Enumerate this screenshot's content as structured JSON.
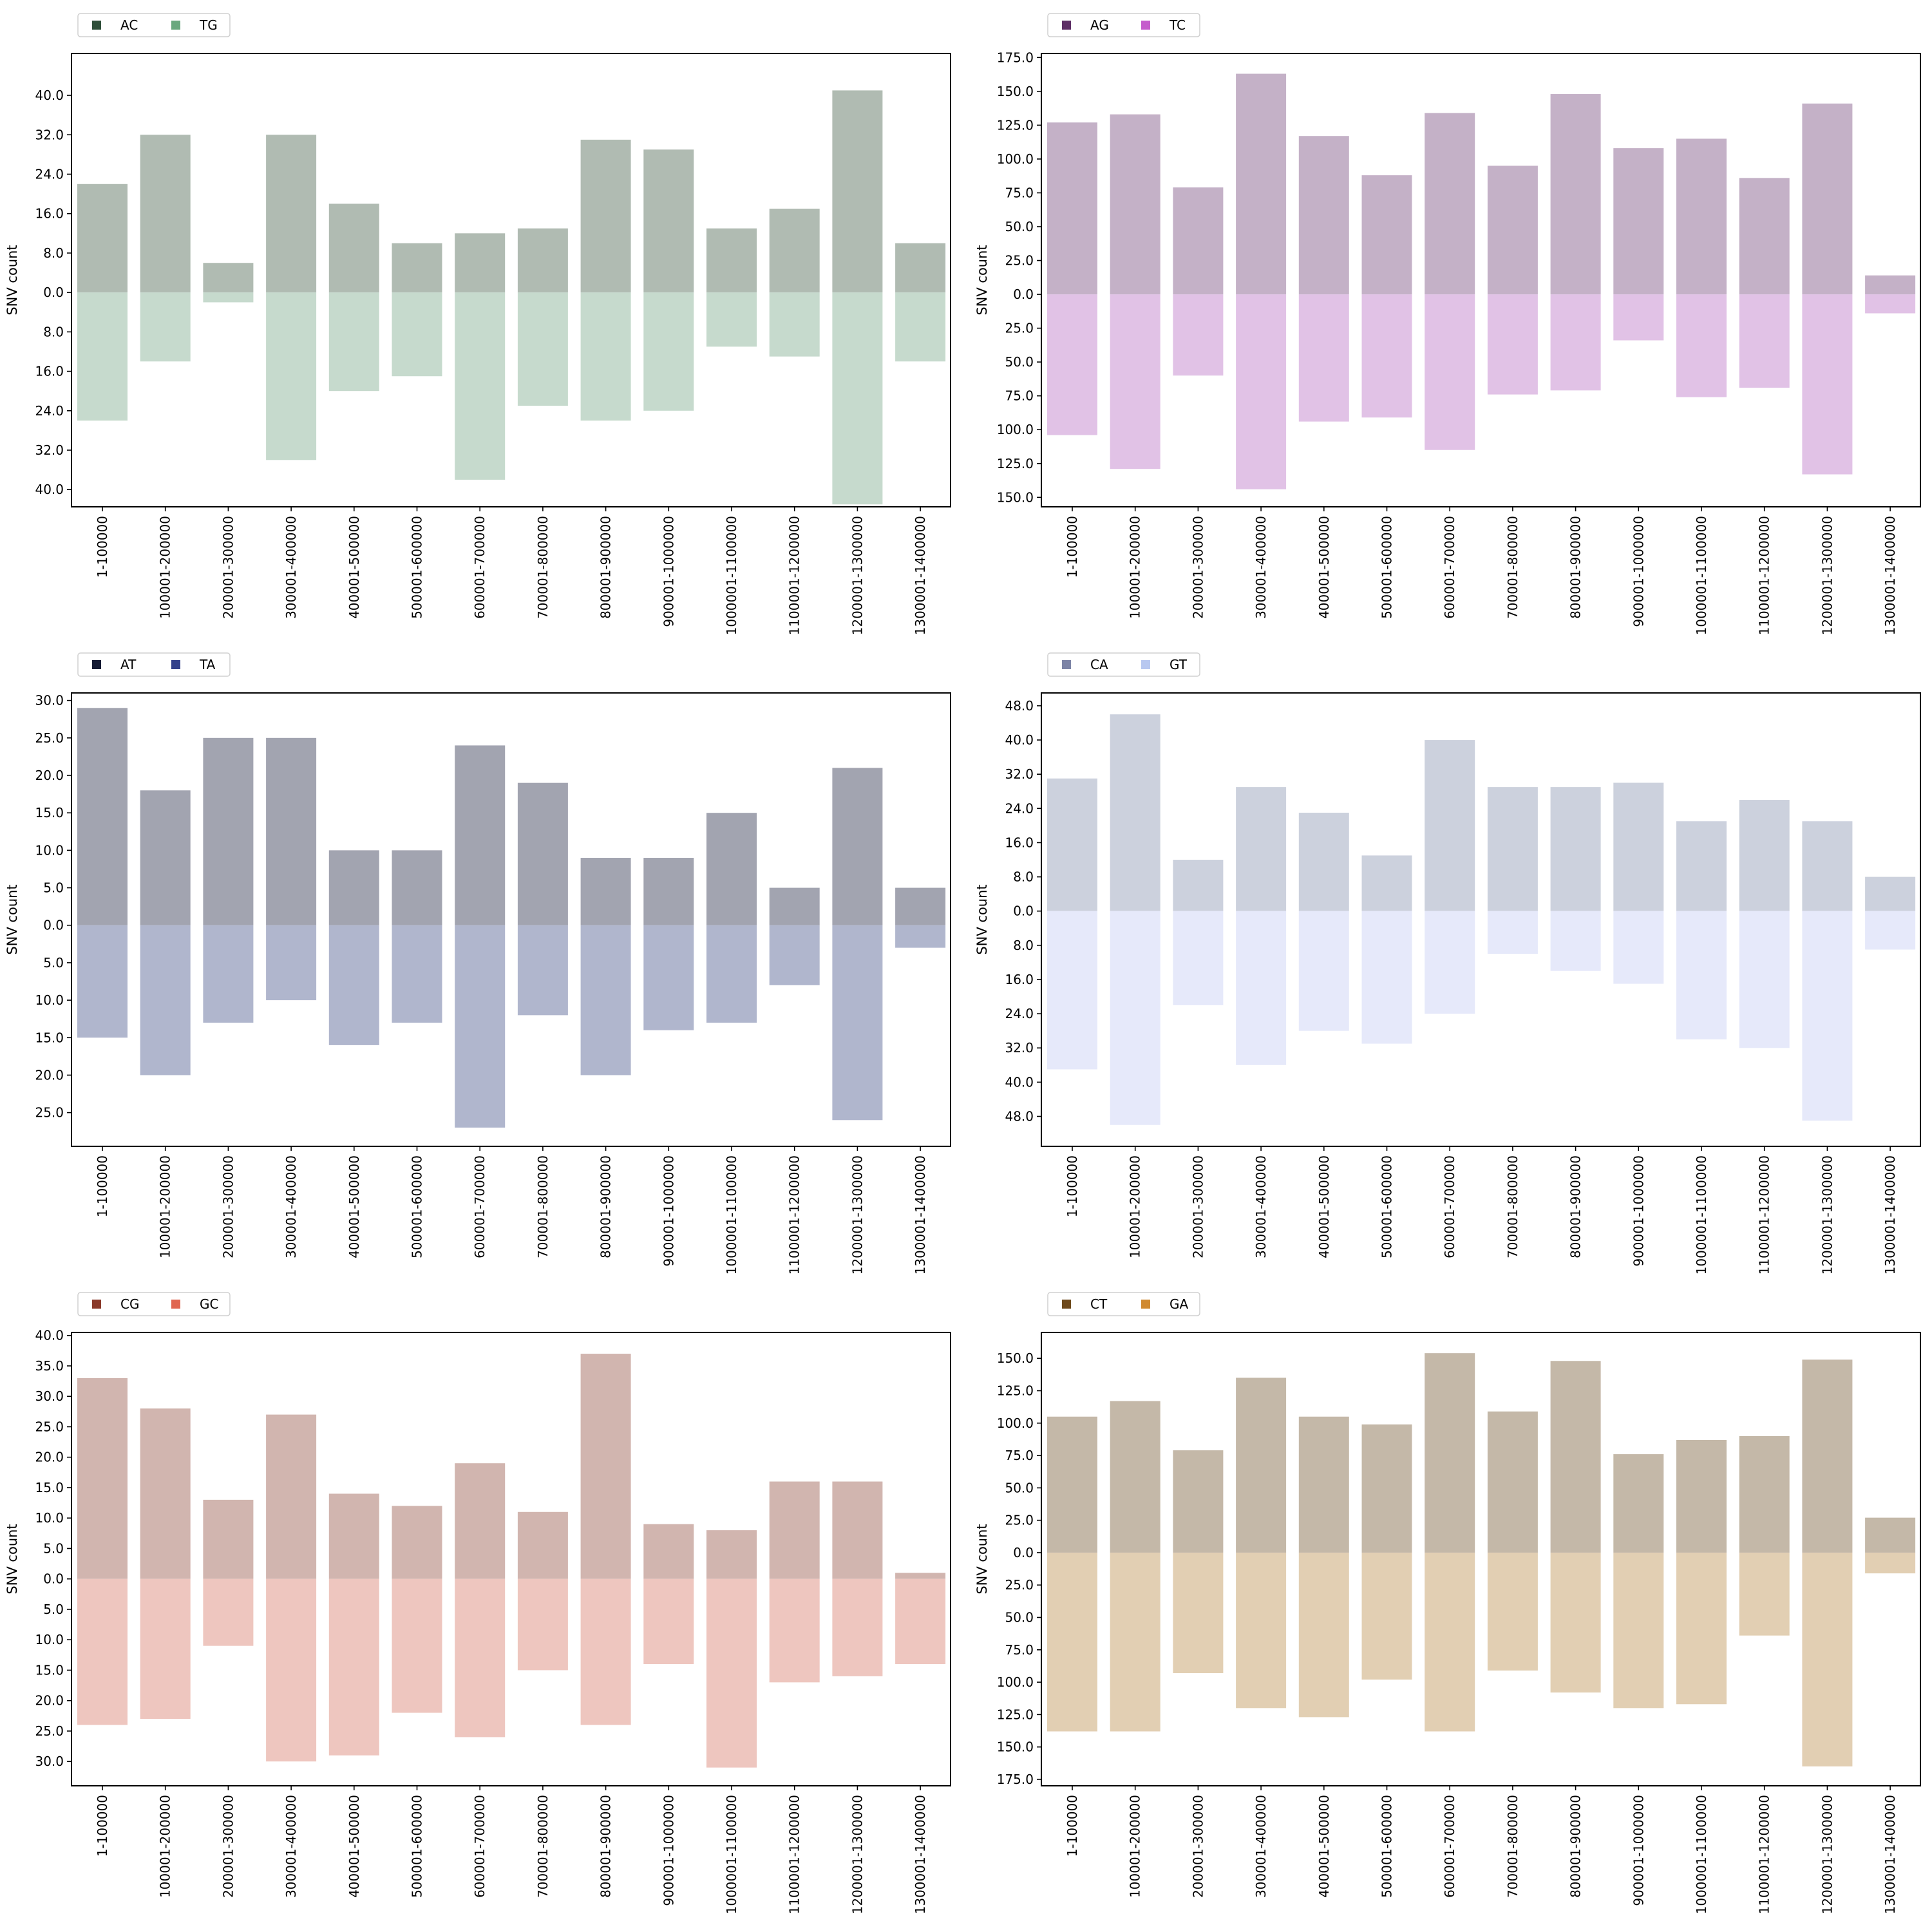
{
  "categories": [
    "1-100000",
    "100001-200000",
    "200001-300000",
    "300001-400000",
    "400001-500000",
    "500001-600000",
    "600001-700000",
    "700001-800000",
    "800001-900000",
    "900001-1000000",
    "1000001-1100000",
    "1100001-1200000",
    "1200001-1300000",
    "1300001-1400000"
  ],
  "chart_data": [
    {
      "type": "bar",
      "ylabel": "SNV count",
      "grid": false,
      "legend_position": "top-left, above plot",
      "ylim": [
        -43.5,
        48.5
      ],
      "yticks": [
        -40,
        -32,
        -24,
        -16,
        -8,
        0,
        8,
        16,
        24,
        32,
        40
      ],
      "series": [
        {
          "name": "AC",
          "direction": "up",
          "legend_color": "#2f4f3a",
          "bar_color": "#b0bbb2",
          "values": [
            22,
            32,
            6,
            32,
            18,
            10,
            12,
            13,
            31,
            29,
            13,
            17,
            41,
            10
          ]
        },
        {
          "name": "TG",
          "direction": "down",
          "legend_color": "#6aa87e",
          "bar_color": "#c6dacd",
          "values": [
            26,
            14,
            2,
            34,
            20,
            17,
            38,
            23,
            26,
            24,
            11,
            13,
            43,
            14
          ]
        }
      ]
    },
    {
      "type": "bar",
      "ylabel": "SNV count",
      "grid": false,
      "legend_position": "top-left, above plot",
      "ylim": [
        -157,
        178
      ],
      "yticks": [
        -150,
        -125,
        -100,
        -75,
        -50,
        -25,
        0,
        25,
        50,
        75,
        100,
        125,
        150,
        175
      ],
      "series": [
        {
          "name": "AG",
          "direction": "up",
          "legend_color": "#5e2f66",
          "bar_color": "#c4b1c7",
          "values": [
            127,
            133,
            79,
            163,
            117,
            88,
            134,
            95,
            148,
            108,
            115,
            86,
            141,
            14
          ]
        },
        {
          "name": "TC",
          "direction": "down",
          "legend_color": "#c55ccc",
          "bar_color": "#e1c2e6",
          "values": [
            104,
            129,
            60,
            144,
            94,
            91,
            115,
            74,
            71,
            34,
            76,
            69,
            133,
            14
          ]
        }
      ]
    },
    {
      "type": "bar",
      "ylabel": "SNV count",
      "grid": false,
      "legend_position": "top-left, above plot",
      "ylim": [
        -29.5,
        31.0
      ],
      "yticks": [
        -25,
        -20,
        -15,
        -10,
        -5,
        0,
        5,
        10,
        15,
        20,
        25,
        30
      ],
      "series": [
        {
          "name": "AT",
          "direction": "up",
          "legend_color": "#141a33",
          "bar_color": "#a2a4b0",
          "values": [
            29,
            18,
            25,
            25,
            10,
            10,
            24,
            19,
            9,
            9,
            15,
            5,
            21,
            5
          ]
        },
        {
          "name": "TA",
          "direction": "down",
          "legend_color": "#34418a",
          "bar_color": "#b0b6cd",
          "values": [
            15,
            20,
            13,
            10,
            16,
            13,
            27,
            12,
            20,
            14,
            13,
            8,
            26,
            3
          ]
        }
      ]
    },
    {
      "type": "bar",
      "ylabel": "SNV count",
      "grid": false,
      "legend_position": "top-left, above plot",
      "ylim": [
        -55,
        51
      ],
      "yticks": [
        -48,
        -40,
        -32,
        -24,
        -16,
        -8,
        0,
        8,
        16,
        24,
        32,
        40,
        48
      ],
      "series": [
        {
          "name": "CA",
          "direction": "up",
          "legend_color": "#7d84a6",
          "bar_color": "#ccd1dd",
          "values": [
            31,
            46,
            12,
            29,
            23,
            13,
            40,
            29,
            29,
            30,
            21,
            26,
            21,
            8
          ]
        },
        {
          "name": "GT",
          "direction": "down",
          "legend_color": "#b8c8f0",
          "bar_color": "#e6e9fa",
          "values": [
            37,
            50,
            22,
            36,
            28,
            31,
            24,
            10,
            14,
            17,
            30,
            32,
            49,
            9
          ]
        }
      ]
    },
    {
      "type": "bar",
      "ylabel": "SNV count",
      "grid": false,
      "legend_position": "top-left, above plot",
      "ylim": [
        -34,
        40.5
      ],
      "yticks": [
        -30,
        -25,
        -20,
        -15,
        -10,
        -5,
        0,
        5,
        10,
        15,
        20,
        25,
        30,
        35,
        40
      ],
      "series": [
        {
          "name": "CG",
          "direction": "up",
          "legend_color": "#8a3a2a",
          "bar_color": "#d1b5af",
          "values": [
            33,
            28,
            13,
            27,
            14,
            12,
            19,
            11,
            37,
            9,
            8,
            16,
            16,
            1
          ]
        },
        {
          "name": "GC",
          "direction": "down",
          "legend_color": "#e06650",
          "bar_color": "#eec6bf",
          "values": [
            24,
            23,
            11,
            30,
            29,
            22,
            26,
            15,
            24,
            14,
            31,
            17,
            16,
            14
          ]
        }
      ]
    },
    {
      "type": "bar",
      "ylabel": "SNV count",
      "grid": false,
      "legend_position": "top-left, above plot",
      "ylim": [
        -180,
        170
      ],
      "yticks": [
        -175,
        -150,
        -125,
        -100,
        -75,
        -50,
        -25,
        0,
        25,
        50,
        75,
        100,
        125,
        150
      ],
      "series": [
        {
          "name": "CT",
          "direction": "up",
          "legend_color": "#6e4a1c",
          "bar_color": "#c4b8a8",
          "values": [
            105,
            117,
            79,
            135,
            105,
            99,
            154,
            109,
            148,
            76,
            87,
            90,
            149,
            27
          ]
        },
        {
          "name": "GA",
          "direction": "down",
          "legend_color": "#d08a30",
          "bar_color": "#e2cfb3",
          "values": [
            138,
            138,
            93,
            120,
            127,
            98,
            138,
            91,
            108,
            120,
            117,
            64,
            165,
            16
          ]
        }
      ]
    }
  ]
}
